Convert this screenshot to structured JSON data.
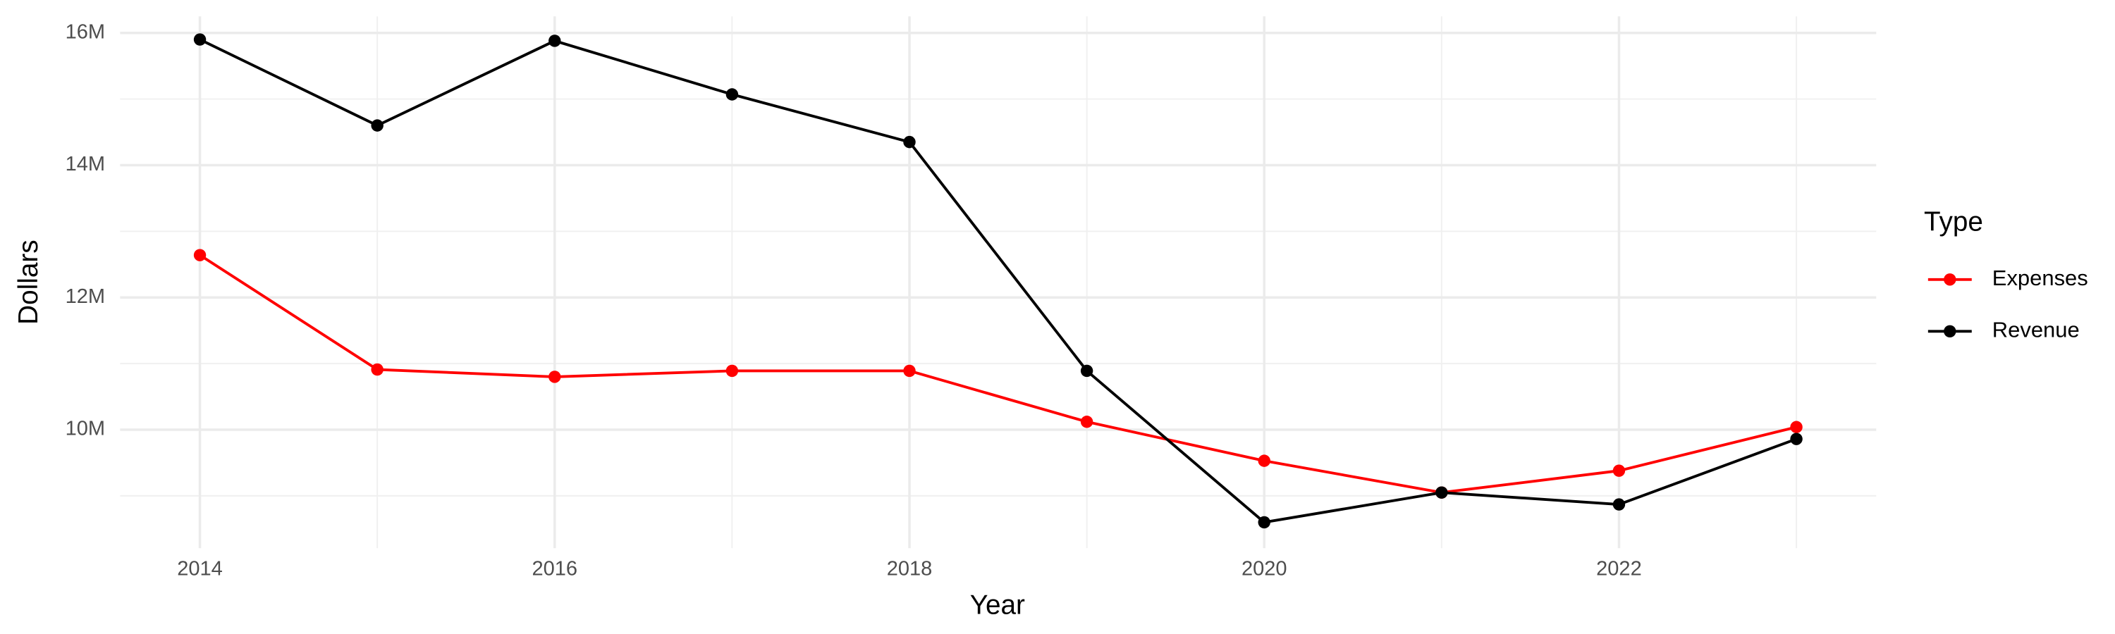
{
  "chart_data": {
    "type": "line",
    "x_label": "Year",
    "y_label": "Dollars",
    "legend_title": "Type",
    "legend_position": "right",
    "grid": true,
    "x": [
      2014,
      2015,
      2016,
      2017,
      2018,
      2019,
      2020,
      2021,
      2022,
      2023
    ],
    "series": [
      {
        "name": "Expenses",
        "color": "#ff0000",
        "values": [
          12640000,
          10910000,
          10800000,
          10890000,
          10890000,
          10120000,
          9530000,
          9050000,
          9380000,
          10040000
        ]
      },
      {
        "name": "Revenue",
        "color": "#000000",
        "values": [
          15900000,
          14600000,
          15880000,
          15070000,
          14350000,
          10890000,
          8600000,
          9050000,
          8870000,
          9860000
        ]
      }
    ],
    "xlim": [
      2013.55,
      2023.45
    ],
    "xticks": [
      2014,
      2016,
      2018,
      2020,
      2022
    ],
    "ylim": [
      8210000,
      16250000
    ],
    "yticks": [
      {
        "value": 10000000,
        "label": "10M"
      },
      {
        "value": 12000000,
        "label": "12M"
      },
      {
        "value": 14000000,
        "label": "14M"
      },
      {
        "value": 16000000,
        "label": "16M"
      }
    ]
  }
}
